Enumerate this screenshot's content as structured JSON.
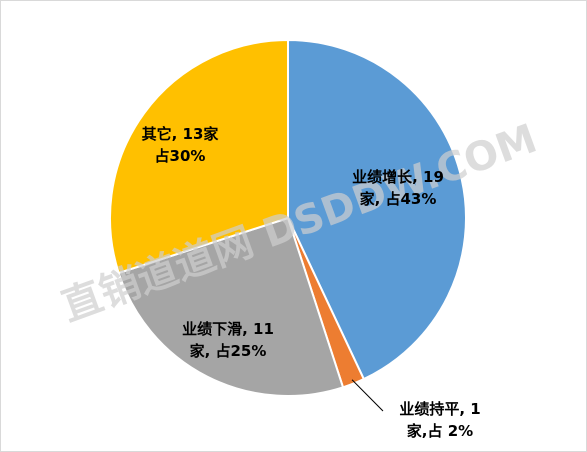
{
  "chart_data": {
    "type": "pie",
    "categories": [
      "业绩增长",
      "业绩持平",
      "业绩下滑",
      "其它"
    ],
    "values": [
      43,
      2,
      25,
      30
    ],
    "value_labels": [
      [
        "业绩增长, 19",
        "家, 占43%"
      ],
      [
        "业绩持平, 1",
        "家,占 2%"
      ],
      [
        "业绩下滑, 11",
        "家, 占25%"
      ],
      [
        "其它, 13家",
        "占30%"
      ]
    ],
    "colors": [
      "#5b9bd5",
      "#ed7d31",
      "#a5a5a5",
      "#ffc000"
    ],
    "watermark": "直销道道网 DSDDW.COM"
  }
}
